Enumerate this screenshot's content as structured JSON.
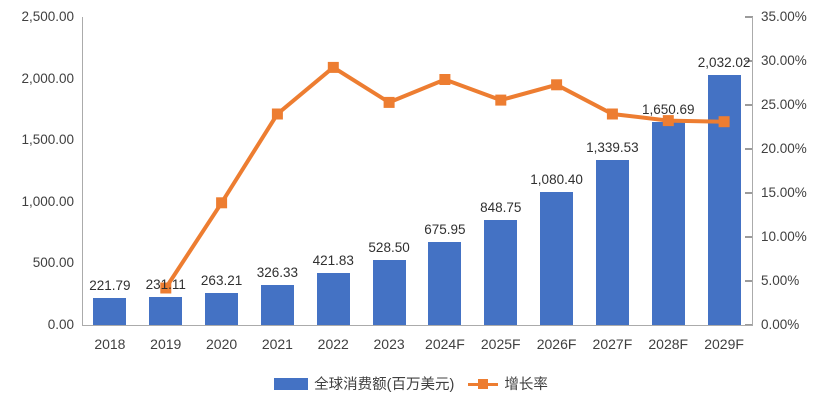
{
  "colors": {
    "bar": "#4472C4",
    "line": "#ED7D31",
    "axis_line": "#ABABAB",
    "tick_text": "#404040",
    "label_text": "#303030"
  },
  "chart_data": {
    "type": "bar+line combo",
    "categories": [
      "2018",
      "2019",
      "2020",
      "2021",
      "2022",
      "2023",
      "2024F",
      "2025F",
      "2026F",
      "2027F",
      "2028F",
      "2029F"
    ],
    "series": [
      {
        "name": "全球消费额(百万美元)",
        "type": "bar",
        "axis": "left",
        "values": [
          221.79,
          231.11,
          263.21,
          326.33,
          421.83,
          528.5,
          675.95,
          848.75,
          1080.4,
          1339.53,
          1650.69,
          2032.02
        ],
        "labels": [
          "221.79",
          "231.11",
          "263.21",
          "326.33",
          "421.83",
          "528.50",
          "675.95",
          "848.75",
          "1,080.40",
          "1,339.53",
          "1,650.69",
          "2,032.02"
        ]
      },
      {
        "name": "增长率",
        "type": "line",
        "axis": "right",
        "values": [
          null,
          4.2,
          13.89,
          23.98,
          29.27,
          25.29,
          27.9,
          25.56,
          27.29,
          23.98,
          23.23,
          23.1
        ]
      }
    ],
    "left_axis": {
      "min": 0,
      "max": 2500,
      "step": 500,
      "tick_labels": [
        "2,500.00",
        "2,000.00",
        "1,500.00",
        "1,000.00",
        "500.00",
        "0.00"
      ]
    },
    "right_axis": {
      "min": 0,
      "max": 35,
      "step": 5,
      "tick_labels": [
        "35.00%",
        "30.00%",
        "25.00%",
        "20.00%",
        "15.00%",
        "10.00%",
        "5.00%",
        "0.00%"
      ]
    },
    "legend": [
      {
        "label": "全球消费额(百万美元)",
        "swatch": "bar"
      },
      {
        "label": "增长率",
        "swatch": "line-marker"
      }
    ],
    "grid": "off",
    "legend_position": "bottom-center"
  }
}
